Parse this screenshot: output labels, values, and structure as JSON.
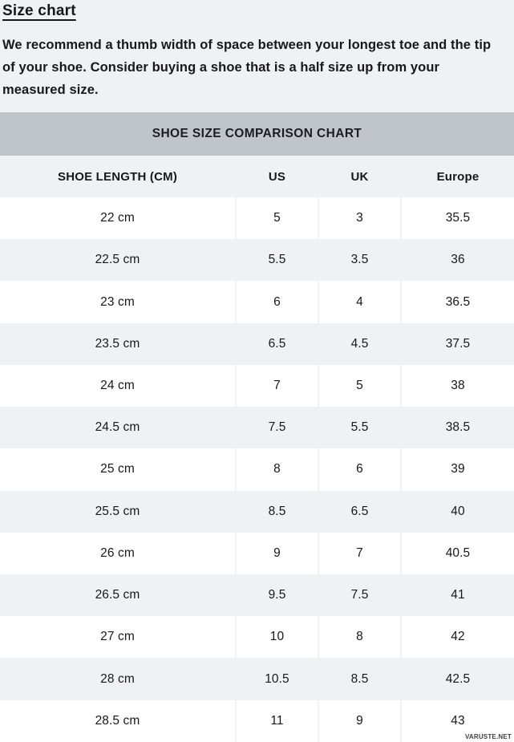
{
  "page": {
    "title": "Size chart",
    "intro": "We recommend a thumb width of space between your longest toe and the tip of your shoe. Consider buying a shoe that is a half size up from your measured size.",
    "watermark": "VARUSTE.NET"
  },
  "chart_data": {
    "type": "table",
    "title": "SHOE SIZE COMPARISON CHART",
    "columns": [
      "SHOE LENGTH (CM)",
      "US",
      "UK",
      "Europe"
    ],
    "rows": [
      [
        "22 cm",
        "5",
        "3",
        "35.5"
      ],
      [
        "22.5 cm",
        "5.5",
        "3.5",
        "36"
      ],
      [
        "23 cm",
        "6",
        "4",
        "36.5"
      ],
      [
        "23.5 cm",
        "6.5",
        "4.5",
        "37.5"
      ],
      [
        "24 cm",
        "7",
        "5",
        "38"
      ],
      [
        "24.5 cm",
        "7.5",
        "5.5",
        "38.5"
      ],
      [
        "25 cm",
        "8",
        "6",
        "39"
      ],
      [
        "25.5 cm",
        "8.5",
        "6.5",
        "40"
      ],
      [
        "26 cm",
        "9",
        "7",
        "40.5"
      ],
      [
        "26.5 cm",
        "9.5",
        "7.5",
        "41"
      ],
      [
        "27 cm",
        "10",
        "8",
        "42"
      ],
      [
        "28 cm",
        "10.5",
        "8.5",
        "42.5"
      ],
      [
        "28.5 cm",
        "11",
        "9",
        "43"
      ]
    ]
  },
  "colors": {
    "page_bg": "#f0f1f5",
    "band_bg": "#c0c5cc",
    "row_white": "#ffffff",
    "text": "#17171c",
    "watermark": "#3e3e46"
  }
}
